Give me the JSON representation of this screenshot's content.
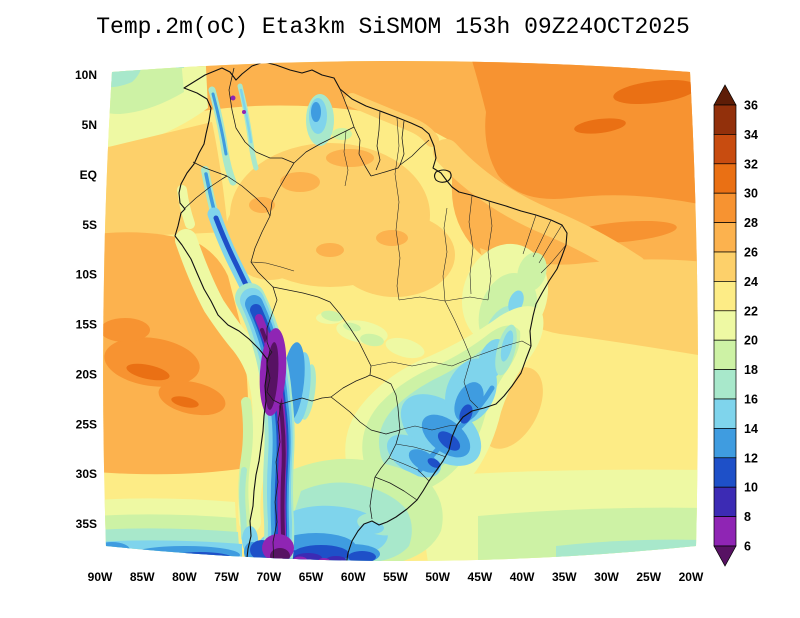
{
  "title": "Temp.2m(oC) Eta3km SiSMOM 153h 09Z24OCT2025",
  "axes": {
    "lat_labels": [
      "10N",
      "5N",
      "EQ",
      "5S",
      "10S",
      "15S",
      "20S",
      "25S",
      "30S",
      "35S"
    ],
    "lon_labels": [
      "90W",
      "85W",
      "80W",
      "75W",
      "70W",
      "65W",
      "60W",
      "55W",
      "50W",
      "45W",
      "40W",
      "35W",
      "30W",
      "25W",
      "20W"
    ]
  },
  "colorbar": {
    "units": "oC",
    "tick_labels": [
      "36",
      "34",
      "32",
      "30",
      "28",
      "26",
      "24",
      "22",
      "20",
      "18",
      "16",
      "14",
      "12",
      "10",
      "8",
      "6"
    ],
    "cap_top_color": "#5e1d07",
    "cap_bottom_color": "#571263",
    "band_colors": [
      "#92300b",
      "#c84c10",
      "#ea7014",
      "#f79331",
      "#fcb24e",
      "#fdd06a",
      "#fdec86",
      "#eef9a3",
      "#cdf2a5",
      "#a8e8cb",
      "#7fd4ec",
      "#3f9ce0",
      "#1e50c8",
      "#3c2bb4",
      "#8f25b4"
    ]
  },
  "palette": {
    "c36cap": "#5e1d07",
    "c34": "#92300b",
    "c32": "#c84c10",
    "c30": "#ea7014",
    "c28": "#f79331",
    "c26": "#fcb24e",
    "c24": "#fdd06a",
    "c22": "#fdec86",
    "c20": "#eef9a3",
    "c18": "#cdf2a5",
    "c16": "#a8e8cb",
    "c14": "#7fd4ec",
    "c12": "#3f9ce0",
    "c10": "#1e50c8",
    "c8": "#3c2bb4",
    "c6": "#8f25b4",
    "c4cap": "#571263"
  }
}
